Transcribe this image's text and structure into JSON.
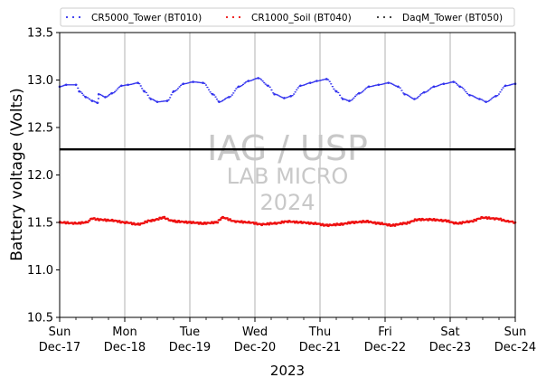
{
  "chart_data": {
    "type": "scatter",
    "ylabel": "Battery voltage (Volts)",
    "xlabel": "2023",
    "ylim": [
      10.5,
      13.5
    ],
    "yticks": [
      "10.5",
      "11.0",
      "11.5",
      "12.0",
      "12.5",
      "13.0",
      "13.5"
    ],
    "xlim": [
      "2023-12-17",
      "2023-12-24"
    ],
    "xticks": [
      {
        "day": "Sun",
        "date": "Dec-17"
      },
      {
        "day": "Mon",
        "date": "Dec-18"
      },
      {
        "day": "Tue",
        "date": "Dec-19"
      },
      {
        "day": "Wed",
        "date": "Dec-20"
      },
      {
        "day": "Thu",
        "date": "Dec-21"
      },
      {
        "day": "Fri",
        "date": "Dec-22"
      },
      {
        "day": "Sat",
        "date": "Dec-23"
      },
      {
        "day": "Sun",
        "date": "Dec-24"
      }
    ],
    "grid": "vertical",
    "legend_position": "top",
    "reference_line": {
      "y": 12.27,
      "color": "#000000"
    },
    "watermark": [
      "IAG / USP",
      "LAB MICRO",
      "2024"
    ],
    "series": [
      {
        "name": "CR5000_Tower (BT010)",
        "color": "#3333ee",
        "x_days": [
          0,
          0.1,
          0.25,
          0.3,
          0.4,
          0.5,
          0.58,
          0.6,
          0.7,
          0.8,
          0.95,
          1.05,
          1.2,
          1.3,
          1.4,
          1.5,
          1.65,
          1.75,
          1.9,
          2.05,
          2.2,
          2.35,
          2.45,
          2.6,
          2.75,
          2.9,
          3.05,
          3.2,
          3.3,
          3.45,
          3.55,
          3.7,
          3.85,
          3.95,
          4.1,
          4.25,
          4.35,
          4.45,
          4.6,
          4.75,
          4.9,
          5.05,
          5.2,
          5.3,
          5.45,
          5.6,
          5.75,
          5.9,
          6.05,
          6.15,
          6.3,
          6.45,
          6.55,
          6.7,
          6.85,
          7.0
        ],
        "y": [
          12.93,
          12.95,
          12.95,
          12.88,
          12.82,
          12.78,
          12.76,
          12.85,
          12.82,
          12.86,
          12.94,
          12.95,
          12.97,
          12.88,
          12.8,
          12.77,
          12.78,
          12.88,
          12.96,
          12.98,
          12.97,
          12.85,
          12.77,
          12.82,
          12.93,
          12.99,
          13.02,
          12.94,
          12.85,
          12.81,
          12.83,
          12.94,
          12.97,
          12.99,
          13.01,
          12.88,
          12.8,
          12.78,
          12.86,
          12.93,
          12.95,
          12.97,
          12.93,
          12.85,
          12.8,
          12.87,
          12.93,
          12.96,
          12.98,
          12.93,
          12.84,
          12.8,
          12.77,
          12.83,
          12.94,
          12.96
        ]
      },
      {
        "name": "CR1000_Soil (BT040)",
        "color": "#ee1111",
        "x_days": [
          0,
          0.25,
          0.4,
          0.5,
          0.6,
          0.8,
          1.0,
          1.2,
          1.4,
          1.6,
          1.7,
          1.8,
          2.0,
          2.2,
          2.4,
          2.5,
          2.7,
          2.9,
          3.1,
          3.3,
          3.5,
          3.7,
          3.9,
          4.1,
          4.3,
          4.5,
          4.7,
          4.9,
          5.1,
          5.3,
          5.5,
          5.7,
          5.9,
          6.1,
          6.3,
          6.5,
          6.7,
          6.9,
          7.0
        ],
        "y": [
          11.5,
          11.49,
          11.5,
          11.54,
          11.53,
          11.52,
          11.5,
          11.48,
          11.52,
          11.55,
          11.52,
          11.51,
          11.5,
          11.49,
          11.5,
          11.55,
          11.51,
          11.5,
          11.48,
          11.49,
          11.51,
          11.5,
          11.49,
          11.47,
          11.48,
          11.5,
          11.51,
          11.49,
          11.47,
          11.49,
          11.53,
          11.53,
          11.52,
          11.49,
          11.51,
          11.55,
          11.54,
          11.51,
          11.5
        ]
      },
      {
        "name": "DaqM_Tower (BT050)",
        "color": "#333333",
        "x_days": [],
        "y": []
      }
    ]
  }
}
